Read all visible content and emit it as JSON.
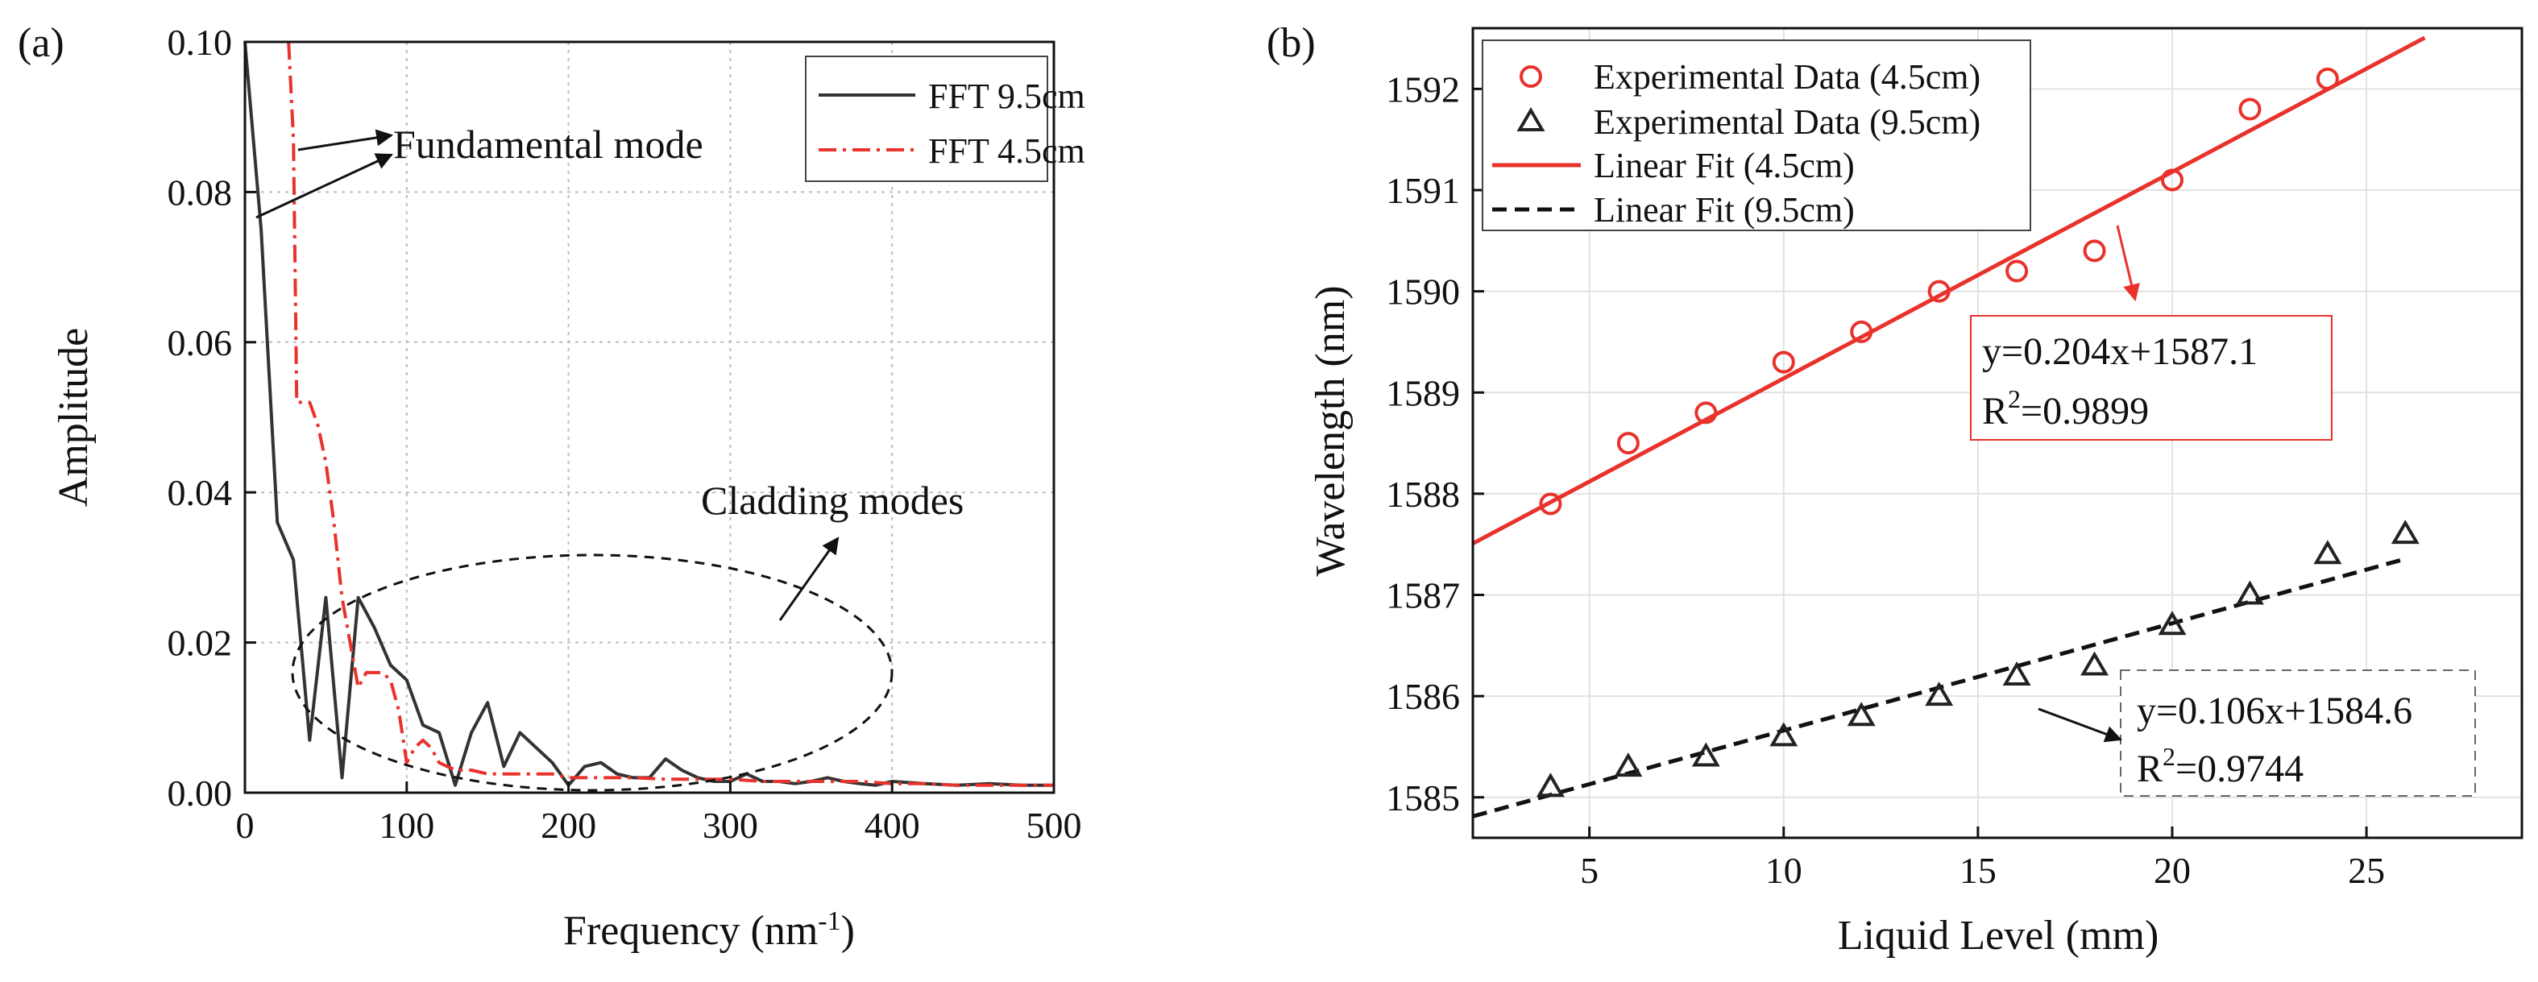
{
  "chart_data": [
    {
      "id": "a",
      "panel_label": "(a)",
      "type": "line",
      "xlabel": "Frequency (nm",
      "xlabel_sup": "-1",
      "xlabel_tail": ")",
      "ylabel": "Amplitude",
      "xlim": [
        0,
        500
      ],
      "ylim": [
        0,
        0.1
      ],
      "xticks": [
        "0",
        "100",
        "200",
        "300",
        "400",
        "500"
      ],
      "yticks": [
        "0.00",
        "0.02",
        "0.04",
        "0.06",
        "0.08",
        "0.10"
      ],
      "grid": true,
      "legend_position": "top-right",
      "series": [
        {
          "name": "FFT 9.5cm",
          "color": "#333333",
          "style": "solid",
          "x": [
            0,
            10,
            20,
            30,
            40,
            50,
            60,
            70,
            80,
            90,
            100,
            110,
            120,
            130,
            140,
            150,
            160,
            170,
            180,
            190,
            200,
            210,
            220,
            230,
            240,
            250,
            260,
            270,
            280,
            290,
            300,
            310,
            320,
            330,
            340,
            350,
            360,
            370,
            380,
            390,
            400,
            420,
            440,
            460,
            480,
            500
          ],
          "y": [
            0.1,
            0.075,
            0.036,
            0.031,
            0.007,
            0.026,
            0.002,
            0.026,
            0.022,
            0.017,
            0.015,
            0.009,
            0.008,
            0.001,
            0.008,
            0.012,
            0.0035,
            0.008,
            0.006,
            0.004,
            0.001,
            0.0035,
            0.004,
            0.0025,
            0.002,
            0.002,
            0.0045,
            0.003,
            0.002,
            0.0015,
            0.0015,
            0.0025,
            0.0015,
            0.0015,
            0.0012,
            0.0015,
            0.002,
            0.0015,
            0.0012,
            0.001,
            0.0015,
            0.0012,
            0.001,
            0.0012,
            0.001,
            0.001
          ]
        },
        {
          "name": "FFT 4.5cm",
          "color": "#e8322b",
          "style": "dash-dot",
          "x": [
            27,
            30,
            32,
            40,
            45,
            50,
            55,
            60,
            65,
            70,
            75,
            80,
            85,
            90,
            95,
            100,
            105,
            110,
            115,
            120,
            130,
            140,
            150,
            160,
            170,
            180,
            190,
            200,
            220,
            240,
            260,
            280,
            300,
            320,
            340,
            360,
            380,
            400,
            420,
            440,
            460,
            480,
            500
          ],
          "y": [
            0.1,
            0.087,
            0.052,
            0.052,
            0.049,
            0.044,
            0.036,
            0.026,
            0.02,
            0.014,
            0.016,
            0.016,
            0.016,
            0.015,
            0.011,
            0.004,
            0.006,
            0.007,
            0.006,
            0.004,
            0.003,
            0.003,
            0.0025,
            0.0025,
            0.0025,
            0.0025,
            0.0025,
            0.002,
            0.002,
            0.002,
            0.0018,
            0.0018,
            0.0018,
            0.0015,
            0.0015,
            0.0015,
            0.0015,
            0.0012,
            0.0012,
            0.001,
            0.001,
            0.001,
            0.001
          ]
        }
      ],
      "annotations": {
        "fundamental": "Fundamental  mode",
        "cladding": "Cladding  modes"
      }
    },
    {
      "id": "b",
      "panel_label": "(b)",
      "type": "scatter",
      "xlabel": "Liquid Level (mm)",
      "ylabel": "Wavelength (nm)",
      "xlim": [
        2,
        29
      ],
      "ylim": [
        1584.6,
        1592.6
      ],
      "xticks": [
        "5",
        "10",
        "15",
        "20",
        "25"
      ],
      "yticks": [
        "1585",
        "1586",
        "1587",
        "1588",
        "1589",
        "1590",
        "1591",
        "1592"
      ],
      "grid": true,
      "legend_position": "top-left",
      "series": [
        {
          "name": "Experimental Data (4.5cm)",
          "color": "#e8322b",
          "marker": "circle",
          "x": [
            4,
            6,
            8,
            10,
            12,
            14,
            16,
            18,
            20,
            22,
            24
          ],
          "y": [
            1587.9,
            1588.5,
            1588.8,
            1589.3,
            1589.6,
            1590.0,
            1590.2,
            1590.4,
            1591.1,
            1591.8,
            1592.1
          ]
        },
        {
          "name": "Experimental Data (9.5cm)",
          "color": "#222222",
          "marker": "triangle",
          "x": [
            4,
            6,
            8,
            10,
            12,
            14,
            16,
            18,
            20,
            22,
            24,
            26
          ],
          "y": [
            1585.1,
            1585.3,
            1585.4,
            1585.6,
            1585.8,
            1586.0,
            1586.2,
            1586.3,
            1586.7,
            1587.0,
            1587.4,
            1587.6
          ]
        }
      ],
      "fits": [
        {
          "name": "Linear Fit (4.5cm)",
          "color": "#e8322b",
          "style": "solid",
          "slope": 0.204,
          "intercept": 1587.1,
          "x_range": [
            2,
            26.5
          ]
        },
        {
          "name": "Linear Fit (9.5cm)",
          "color": "#111111",
          "style": "dashed",
          "slope": 0.106,
          "intercept": 1584.6,
          "x_range": [
            2,
            26
          ]
        }
      ],
      "equations": [
        {
          "eq": "y=0.204x+1587.1",
          "r2_prefix": "R",
          "r2_sup": "2",
          "r2_value": "=0.9899",
          "color": "#e8322b"
        },
        {
          "eq": "y=0.106x+1584.6",
          "r2_prefix": "R",
          "r2_sup": "2",
          "r2_value": "=0.9744",
          "color": "#222222"
        }
      ]
    }
  ]
}
